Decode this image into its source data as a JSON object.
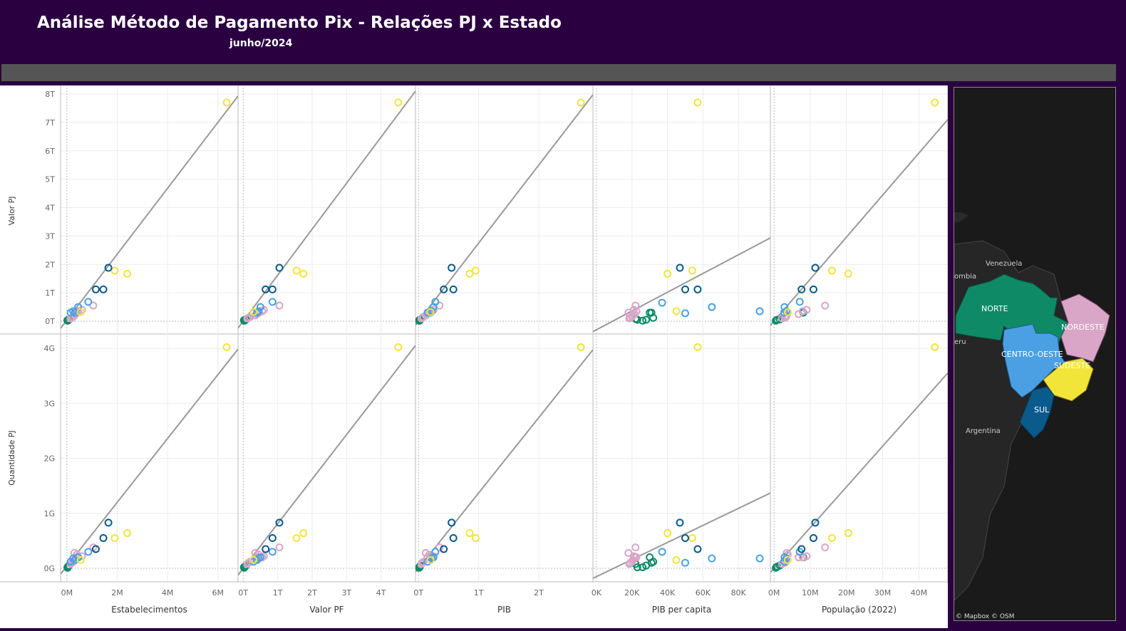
{
  "header": {
    "title": "Análise Método de Pagamento Pix - Relações PJ x Estado",
    "subtitle": "junho/2024"
  },
  "colors": {
    "header_bg": "#2a0040",
    "norte": "#0e8a67",
    "nordeste": "#d9a6c7",
    "centro_oeste": "#4aa0e3",
    "sudeste": "#f2e53a",
    "sul": "#0a5a8c",
    "trend": "#999999"
  },
  "map": {
    "regions": [
      "NORTE",
      "NORDESTE",
      "CENTRO-OESTE",
      "SUDESTE",
      "SUL"
    ],
    "countries": [
      "Venezuela",
      "ombia",
      "eru",
      "Argentina"
    ],
    "attribution": "© Mapbox © OSM"
  },
  "chart_data": {
    "type": "scatter",
    "rows": [
      {
        "label": "Valor PJ",
        "ylim": [
          0,
          8
        ],
        "ticks": [
          0,
          1,
          2,
          3,
          4,
          5,
          6,
          7,
          8
        ],
        "tick_labels": [
          "0T",
          "1T",
          "2T",
          "3T",
          "4T",
          "5T",
          "6T",
          "7T",
          "8T"
        ]
      },
      {
        "label": "Quantidade PJ",
        "ylim": [
          0,
          4
        ],
        "ticks": [
          0,
          1,
          2,
          3,
          4
        ],
        "tick_labels": [
          "0G",
          "1G",
          "2G",
          "3G",
          "4G"
        ]
      }
    ],
    "columns": [
      {
        "label": "Estabelecimentos",
        "xlim": [
          -0.25,
          6.8
        ],
        "ticks": [
          0,
          2,
          4,
          6
        ],
        "tick_labels": [
          "0M",
          "2M",
          "4M",
          "6M"
        ],
        "trend": [
          {
            "slope": 1.16,
            "intercept": 0.04
          },
          {
            "slope": 0.58,
            "intercept": 0.04
          }
        ],
        "points": {
          "NORTE": [
            [
              0.02,
              0.03,
              0.02
            ],
            [
              0.05,
              0.05,
              0.03
            ],
            [
              0.03,
              0.02,
              0.01
            ],
            [
              0.08,
              0.06,
              0.05
            ],
            [
              0.04,
              0.02,
              0.02
            ]
          ],
          "NORDESTE": [
            [
              0.25,
              0.15,
              0.12
            ],
            [
              0.3,
              0.2,
              0.28
            ],
            [
              0.35,
              0.25,
              0.2
            ],
            [
              0.6,
              0.4,
              0.22
            ],
            [
              1.05,
              0.55,
              0.38
            ],
            [
              0.2,
              0.12,
              0.1
            ],
            [
              0.15,
              0.1,
              0.08
            ],
            [
              0.4,
              0.3,
              0.25
            ],
            [
              0.45,
              0.35,
              0.2
            ]
          ],
          "CENTRO_OESTE": [
            [
              0.15,
              0.3,
              0.12
            ],
            [
              0.25,
              0.35,
              0.18
            ],
            [
              0.45,
              0.5,
              0.2
            ],
            [
              0.85,
              0.68,
              0.3
            ],
            [
              0.32,
              0.3,
              0.15
            ]
          ],
          "SUDESTE": [
            [
              0.55,
              0.32,
              0.15
            ],
            [
              1.9,
              1.78,
              0.55
            ],
            [
              2.4,
              1.67,
              0.64
            ],
            [
              6.35,
              7.7,
              4.02
            ]
          ],
          "SUL": [
            [
              1.15,
              1.12,
              0.35
            ],
            [
              1.45,
              1.12,
              0.55
            ],
            [
              1.65,
              1.88,
              0.83
            ]
          ]
        }
      },
      {
        "label": "Valor PF",
        "xlim": [
          -0.15,
          5
        ],
        "ticks": [
          0,
          1,
          2,
          3,
          4
        ],
        "tick_labels": [
          "0T",
          "1T",
          "2T",
          "3T",
          "4T"
        ],
        "trend": [
          {
            "slope": 1.62,
            "intercept": 0.0
          },
          {
            "slope": 0.81,
            "intercept": 0.0
          }
        ],
        "points": {
          "NORTE": [
            [
              0.02,
              0.03,
              0.02
            ],
            [
              0.05,
              0.05,
              0.03
            ],
            [
              0.03,
              0.02,
              0.01
            ],
            [
              0.08,
              0.06,
              0.05
            ],
            [
              0.04,
              0.02,
              0.02
            ]
          ],
          "NORDESTE": [
            [
              0.2,
              0.15,
              0.12
            ],
            [
              0.35,
              0.2,
              0.28
            ],
            [
              0.4,
              0.25,
              0.2
            ],
            [
              0.6,
              0.4,
              0.22
            ],
            [
              1.05,
              0.55,
              0.38
            ],
            [
              0.15,
              0.12,
              0.1
            ],
            [
              0.12,
              0.1,
              0.08
            ],
            [
              0.45,
              0.3,
              0.25
            ],
            [
              0.55,
              0.35,
              0.2
            ]
          ],
          "CENTRO_OESTE": [
            [
              0.3,
              0.3,
              0.12
            ],
            [
              0.45,
              0.35,
              0.18
            ],
            [
              0.5,
              0.5,
              0.2
            ],
            [
              0.85,
              0.68,
              0.3
            ],
            [
              0.4,
              0.3,
              0.15
            ]
          ],
          "SUDESTE": [
            [
              0.3,
              0.32,
              0.15
            ],
            [
              1.55,
              1.78,
              0.55
            ],
            [
              1.75,
              1.67,
              0.64
            ],
            [
              4.5,
              7.7,
              4.02
            ]
          ],
          "SUL": [
            [
              0.65,
              1.12,
              0.35
            ],
            [
              0.85,
              1.12,
              0.55
            ],
            [
              1.05,
              1.88,
              0.83
            ]
          ]
        }
      },
      {
        "label": "PIB",
        "xlim": [
          -0.05,
          2.9
        ],
        "ticks": [
          0,
          1,
          2
        ],
        "tick_labels": [
          "0T",
          "1T",
          "2T"
        ],
        "trend": [
          {
            "slope": 2.75,
            "intercept": 0.0
          },
          {
            "slope": 1.37,
            "intercept": 0.0
          }
        ],
        "points": {
          "NORTE": [
            [
              0.01,
              0.03,
              0.02
            ],
            [
              0.02,
              0.05,
              0.03
            ],
            [
              0.01,
              0.02,
              0.01
            ],
            [
              0.03,
              0.06,
              0.05
            ],
            [
              0.02,
              0.02,
              0.02
            ]
          ],
          "NORDESTE": [
            [
              0.08,
              0.15,
              0.12
            ],
            [
              0.12,
              0.2,
              0.28
            ],
            [
              0.15,
              0.25,
              0.2
            ],
            [
              0.25,
              0.4,
              0.22
            ],
            [
              0.35,
              0.55,
              0.38
            ],
            [
              0.06,
              0.12,
              0.1
            ],
            [
              0.05,
              0.1,
              0.08
            ],
            [
              0.18,
              0.3,
              0.25
            ],
            [
              0.22,
              0.35,
              0.2
            ]
          ],
          "CENTRO_OESTE": [
            [
              0.15,
              0.3,
              0.12
            ],
            [
              0.22,
              0.35,
              0.18
            ],
            [
              0.25,
              0.5,
              0.2
            ],
            [
              0.28,
              0.68,
              0.3
            ],
            [
              0.2,
              0.3,
              0.15
            ]
          ],
          "SUDESTE": [
            [
              0.2,
              0.32,
              0.15
            ],
            [
              0.85,
              1.67,
              0.64
            ],
            [
              0.95,
              1.78,
              0.55
            ],
            [
              2.7,
              7.7,
              4.02
            ]
          ],
          "SUL": [
            [
              0.42,
              1.12,
              0.35
            ],
            [
              0.58,
              1.12,
              0.55
            ],
            [
              0.55,
              1.88,
              0.83
            ]
          ]
        }
      },
      {
        "label": "PIB per capita",
        "xlim": [
          -2000,
          98000
        ],
        "ticks": [
          0,
          20000,
          40000,
          60000,
          80000
        ],
        "tick_labels": [
          "0K",
          "20K",
          "40K",
          "60K",
          "80K"
        ],
        "trend": [
          {
            "slope": 3.3e-05,
            "intercept": -0.3
          },
          {
            "slope": 1.55e-05,
            "intercept": -0.15
          }
        ],
        "points": {
          "NORTE": [
            [
              23000,
              0.05,
              0.02
            ],
            [
              28000,
              0.05,
              0.05
            ],
            [
              30000,
              0.3,
              0.2
            ],
            [
              31000,
              0.3,
              0.1
            ],
            [
              26000,
              0.02,
              0.02
            ],
            [
              22000,
              0.08,
              0.08
            ],
            [
              32000,
              0.12,
              0.12
            ]
          ],
          "NORDESTE": [
            [
              18000,
              0.3,
              0.28
            ],
            [
              20000,
              0.15,
              0.12
            ],
            [
              21000,
              0.4,
              0.22
            ],
            [
              22000,
              0.55,
              0.38
            ],
            [
              19000,
              0.12,
              0.1
            ],
            [
              20500,
              0.2,
              0.15
            ],
            [
              21500,
              0.25,
              0.2
            ],
            [
              22500,
              0.35,
              0.2
            ],
            [
              18500,
              0.1,
              0.08
            ]
          ],
          "CENTRO_OESTE": [
            [
              37000,
              0.65,
              0.3
            ],
            [
              50000,
              0.28,
              0.1
            ],
            [
              65000,
              0.5,
              0.18
            ],
            [
              92000,
              0.35,
              0.18
            ]
          ],
          "SUDESTE": [
            [
              40000,
              1.67,
              0.64
            ],
            [
              45000,
              0.35,
              0.15
            ],
            [
              54000,
              1.78,
              0.55
            ],
            [
              57000,
              7.7,
              4.02
            ]
          ],
          "SUL": [
            [
              47000,
              1.88,
              0.83
            ],
            [
              50000,
              1.12,
              0.55
            ],
            [
              57000,
              1.12,
              0.35
            ]
          ]
        }
      },
      {
        "label": "População (2022)",
        "xlim": [
          -1,
          48
        ],
        "ticks": [
          0,
          10,
          20,
          30,
          40
        ],
        "tick_labels": [
          "0M",
          "10M",
          "20M",
          "30M",
          "40M"
        ],
        "trend": [
          {
            "slope": 0.148,
            "intercept": 0.0
          },
          {
            "slope": 0.074,
            "intercept": 0.0
          }
        ],
        "points": {
          "NORTE": [
            [
              0.6,
              0.03,
              0.02
            ],
            [
              0.9,
              0.05,
              0.03
            ],
            [
              0.5,
              0.02,
              0.01
            ],
            [
              8.1,
              0.3,
              0.2
            ],
            [
              1.6,
              0.06,
              0.05
            ]
          ],
          "NORDESTE": [
            [
              3.3,
              0.15,
              0.12
            ],
            [
              3.5,
              0.2,
              0.28
            ],
            [
              6.8,
              0.25,
              0.2
            ],
            [
              9.0,
              0.4,
              0.22
            ],
            [
              14.1,
              0.55,
              0.38
            ],
            [
              3.0,
              0.12,
              0.1
            ],
            [
              2.2,
              0.1,
              0.08
            ],
            [
              3.8,
              0.3,
              0.25
            ],
            [
              7.9,
              0.35,
              0.2
            ]
          ],
          "CENTRO_OESTE": [
            [
              2.8,
              0.3,
              0.12
            ],
            [
              3.4,
              0.35,
              0.18
            ],
            [
              2.9,
              0.5,
              0.2
            ],
            [
              7.1,
              0.68,
              0.3
            ]
          ],
          "SUDESTE": [
            [
              3.8,
              0.32,
              0.15
            ],
            [
              16.0,
              1.78,
              0.55
            ],
            [
              20.5,
              1.67,
              0.64
            ],
            [
              44.4,
              7.7,
              4.02
            ]
          ],
          "SUL": [
            [
              7.6,
              1.12,
              0.35
            ],
            [
              10.9,
              1.12,
              0.55
            ],
            [
              11.4,
              1.88,
              0.83
            ]
          ]
        }
      }
    ],
    "grid": true,
    "legend": "none"
  }
}
